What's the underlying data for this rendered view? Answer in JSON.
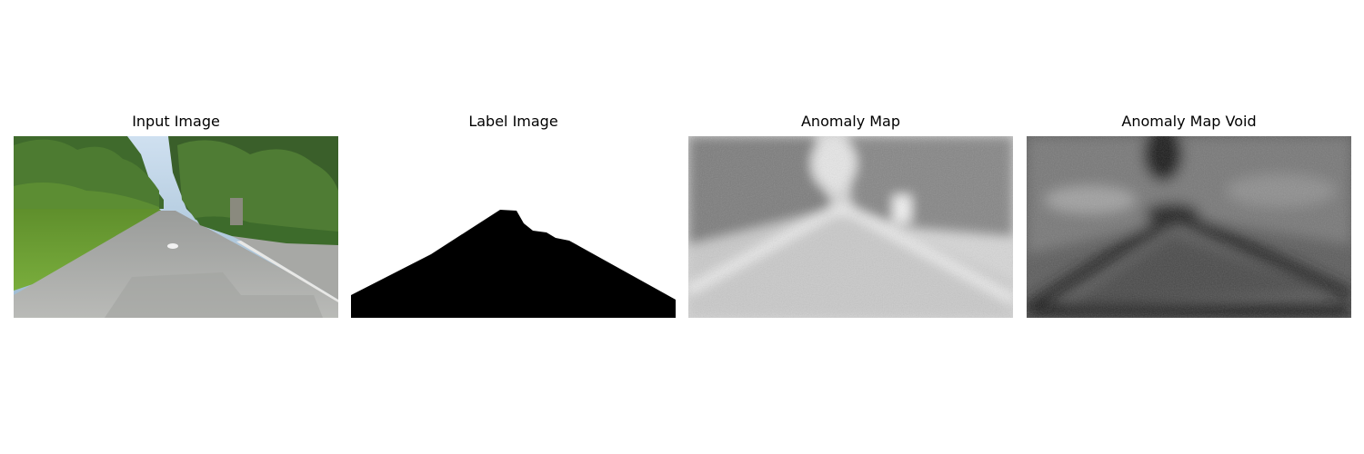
{
  "panels": [
    {
      "title": "Input Image"
    },
    {
      "title": "Label Image"
    },
    {
      "title": "Anomaly Map"
    },
    {
      "title": "Anomaly Map Void"
    }
  ]
}
